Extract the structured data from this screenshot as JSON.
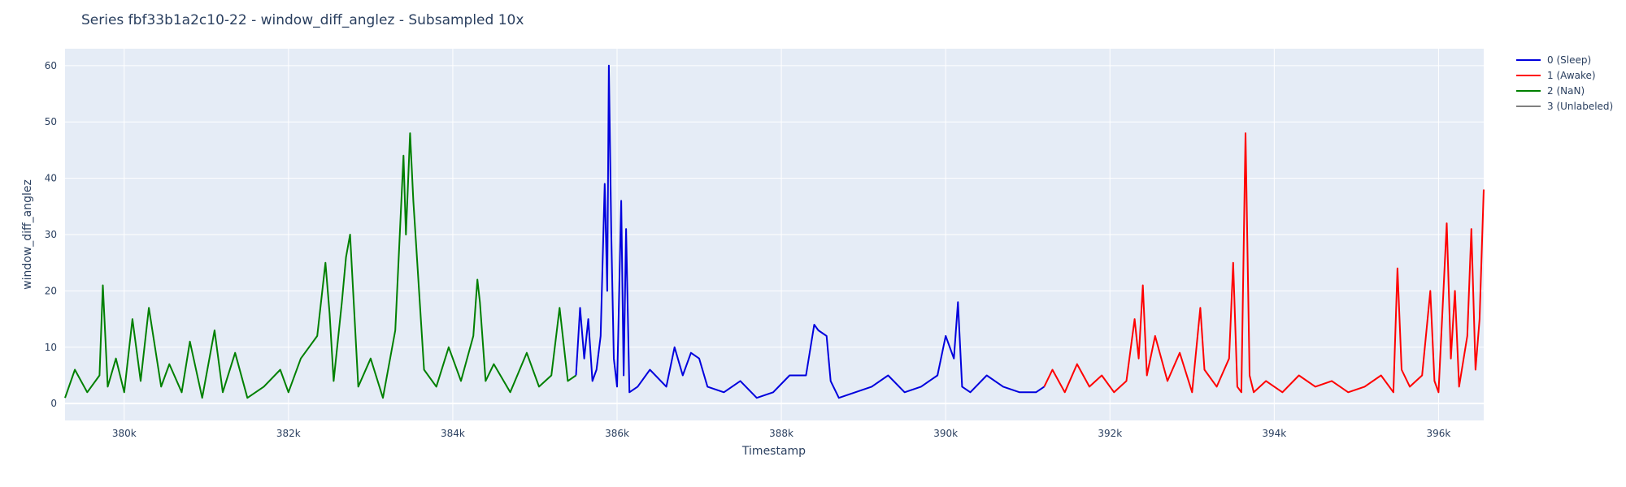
{
  "chart_data": {
    "type": "line",
    "title": "Series fbf33b1a2c10-22 - window_diff_anglez - Subsampled 10x",
    "xlabel": "Timestamp",
    "ylabel": "window_diff_anglez",
    "xlim": [
      379280,
      396550
    ],
    "ylim": [
      -3,
      63
    ],
    "xticks": [
      380000,
      382000,
      384000,
      386000,
      388000,
      390000,
      392000,
      394000,
      396000
    ],
    "xtick_labels": [
      "380k",
      "382k",
      "384k",
      "386k",
      "388k",
      "390k",
      "392k",
      "394k",
      "396k"
    ],
    "yticks": [
      0,
      10,
      20,
      30,
      40,
      50,
      60
    ],
    "ytick_labels": [
      "0",
      "10",
      "20",
      "30",
      "40",
      "50",
      "60"
    ],
    "grid": true,
    "legend_position": "top-right",
    "background": "#e5ecf6",
    "series": [
      {
        "name": "2 (NaN)",
        "color": "#008000",
        "x": [
          379280,
          379400,
          379550,
          379700,
          379740,
          379800,
          379900,
          380000,
          380100,
          380200,
          380300,
          380450,
          380550,
          380700,
          380800,
          380950,
          381100,
          381200,
          381350,
          381500,
          381700,
          381900,
          382000,
          382150,
          382350,
          382450,
          382500,
          382550,
          382650,
          382700,
          382750,
          382850,
          383000,
          383150,
          383300,
          383400,
          383430,
          383480,
          383520,
          383550,
          383650,
          383800,
          383950,
          384100,
          384250,
          384300,
          384330,
          384400,
          384500,
          384700,
          384900,
          385050,
          385200,
          385300,
          385400,
          385500
        ],
        "y": [
          1,
          6,
          2,
          5,
          21,
          3,
          8,
          2,
          15,
          4,
          17,
          3,
          7,
          2,
          11,
          1,
          13,
          2,
          9,
          1,
          3,
          6,
          2,
          8,
          12,
          25,
          16,
          4,
          18,
          26,
          30,
          3,
          8,
          1,
          13,
          44,
          30,
          48,
          36,
          29,
          6,
          3,
          10,
          4,
          12,
          22,
          18,
          4,
          7,
          2,
          9,
          3,
          5,
          17,
          4,
          5
        ]
      },
      {
        "name": "0 (Sleep)",
        "color": "#0000dd",
        "x": [
          385500,
          385550,
          385600,
          385650,
          385700,
          385750,
          385800,
          385850,
          385880,
          385900,
          385930,
          385960,
          386000,
          386050,
          386080,
          386110,
          386150,
          386250,
          386400,
          386600,
          386700,
          386800,
          386900,
          387000,
          387100,
          387300,
          387500,
          387700,
          387900,
          388100,
          388300,
          388400,
          388450,
          388550,
          388600,
          388700,
          388900,
          389100,
          389300,
          389500,
          389700,
          389900,
          390000,
          390100,
          390150,
          390200,
          390300,
          390500,
          390700,
          390900,
          391100,
          391200
        ],
        "y": [
          5,
          17,
          8,
          15,
          4,
          6,
          12,
          39,
          20,
          60,
          30,
          8,
          3,
          36,
          5,
          31,
          2,
          3,
          6,
          3,
          10,
          5,
          9,
          8,
          3,
          2,
          4,
          1,
          2,
          5,
          5,
          14,
          13,
          12,
          4,
          1,
          2,
          3,
          5,
          2,
          3,
          5,
          12,
          8,
          18,
          3,
          2,
          5,
          3,
          2,
          2,
          3
        ]
      },
      {
        "name": "1 (Awake)",
        "color": "#ff0000",
        "x": [
          391200,
          391300,
          391450,
          391600,
          391750,
          391900,
          392050,
          392200,
          392300,
          392350,
          392400,
          392450,
          392550,
          392700,
          392850,
          393000,
          393100,
          393150,
          393300,
          393450,
          393500,
          393550,
          393600,
          393650,
          393700,
          393750,
          393900,
          394100,
          394300,
          394500,
          394700,
          394900,
          395100,
          395300,
          395450,
          395500,
          395550,
          395650,
          395800,
          395900,
          395950,
          396000,
          396100,
          396150,
          396200,
          396250,
          396350,
          396400,
          396450,
          396500,
          396550
        ],
        "y": [
          3,
          6,
          2,
          7,
          3,
          5,
          2,
          4,
          15,
          8,
          21,
          5,
          12,
          4,
          9,
          2,
          17,
          6,
          3,
          8,
          25,
          3,
          2,
          48,
          5,
          2,
          4,
          2,
          5,
          3,
          4,
          2,
          3,
          5,
          2,
          24,
          6,
          3,
          5,
          20,
          4,
          2,
          32,
          8,
          20,
          3,
          12,
          31,
          6,
          15,
          38
        ]
      },
      {
        "name": "3 (Unlabeled)",
        "color": "#808080",
        "x": [],
        "y": []
      }
    ],
    "legend_order": [
      "0 (Sleep)",
      "1 (Awake)",
      "2 (NaN)",
      "3 (Unlabeled)"
    ]
  }
}
